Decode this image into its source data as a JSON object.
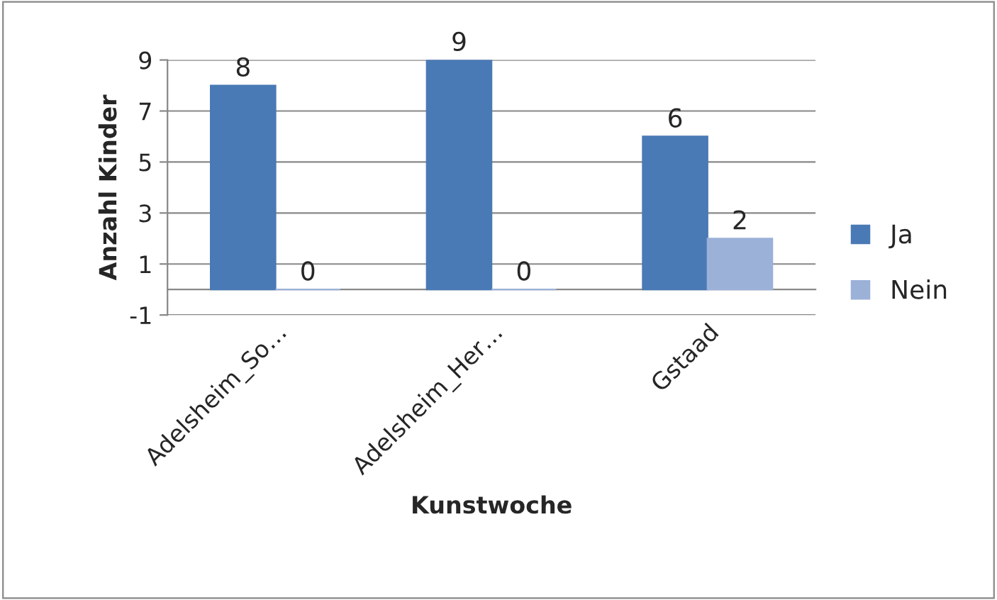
{
  "chart_data": {
    "type": "bar",
    "xlabel": "Kunstwoche",
    "ylabel": "Anzahl Kinder",
    "categories": [
      "Adelsheim_So…",
      "Adelsheim_Her…",
      "Gstaad"
    ],
    "series": [
      {
        "name": "Ja",
        "color": "#4a7ab5",
        "values": [
          8,
          9,
          6
        ]
      },
      {
        "name": "Nein",
        "color": "#9bb1d8",
        "values": [
          0,
          0,
          2
        ]
      }
    ],
    "ylim": [
      -1,
      9
    ],
    "yticks": [
      -1,
      1,
      3,
      5,
      7,
      9
    ],
    "grid": "y",
    "legend": "right",
    "data_labels": true
  }
}
